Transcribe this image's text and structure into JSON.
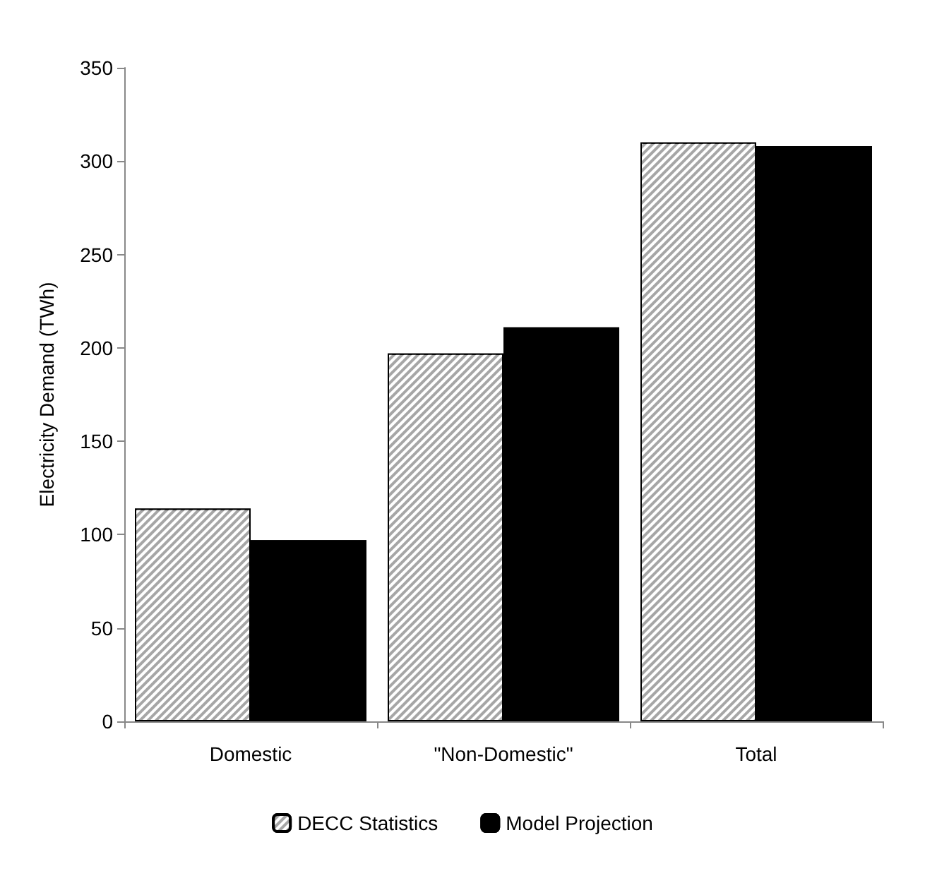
{
  "chart_data": {
    "type": "bar",
    "ylabel": "Electricity Demand (TWh)",
    "categories": [
      "Domestic",
      "\"Non-Domestic\"",
      "Total"
    ],
    "series": [
      {
        "name": "DECC Statistics",
        "color": "#a6a6a6",
        "values": [
          114,
          197,
          310
        ]
      },
      {
        "name": "Model Projection",
        "color": "#000000",
        "values": [
          97,
          211,
          308
        ]
      }
    ],
    "ylim": [
      0,
      350
    ],
    "yticks": [
      0,
      50,
      100,
      150,
      200,
      250,
      300,
      350
    ],
    "grid": false,
    "legend": "bottom"
  }
}
